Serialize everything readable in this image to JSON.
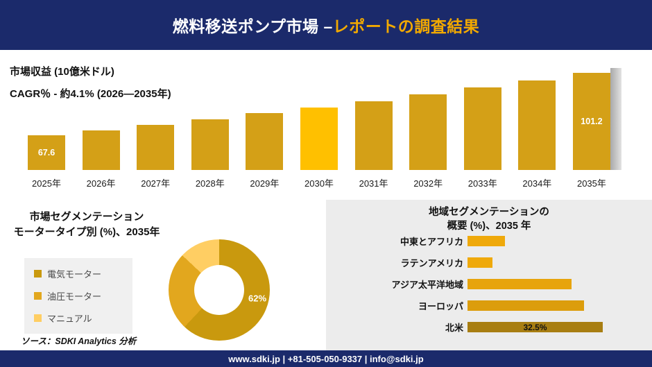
{
  "header": {
    "title_main": "燃料移送ポンプ市場 –",
    "title_accent": "レポートの調査結果"
  },
  "footer": {
    "text": "www.sdki.jp | +81-505-050-9337 | info@sdki.jp"
  },
  "source_note": "ソース：SDKI Analytics 分析",
  "colors": {
    "navy": "#1B2A6B",
    "accent_gold": "#F2A900",
    "panel_gray": "#ECECEC"
  },
  "chart_data": [
    {
      "id": "market-revenue",
      "type": "bar",
      "title": "市場収益 (10億米ドル)",
      "subtitle": "CAGR％ - 約4.1% (2026―2035年)",
      "categories": [
        "2025年",
        "2026年",
        "2027年",
        "2028年",
        "2029年",
        "2030年",
        "2031年",
        "2032年",
        "2033年",
        "2034年",
        "2035年"
      ],
      "values": [
        67.6,
        70.4,
        73.3,
        76.3,
        79.4,
        82.6,
        86.0,
        89.5,
        93.2,
        97.0,
        101.2
      ],
      "value_labels": {
        "0": "67.6",
        "10": "101.2"
      },
      "highlight_index": 5,
      "bar_color": "#D4A017",
      "highlight_color": "#FFC000",
      "ylim": [
        49,
        103
      ],
      "grid": false,
      "legend_position": "none"
    },
    {
      "id": "motor-type-segmentation",
      "type": "pie",
      "donut": true,
      "title_line1": "市場セグメンテーション",
      "title_line2": "モータータイプ別 (%)、2035年",
      "labels": [
        "電気モーター",
        "油圧モーター",
        "マニュアル"
      ],
      "values": [
        62,
        25,
        13
      ],
      "colors": [
        "#C9990E",
        "#E2A71E",
        "#FFCE63"
      ],
      "callout_label": "62%",
      "legend_position": "left"
    },
    {
      "id": "regional-segmentation",
      "type": "bar",
      "orientation": "horizontal",
      "title_line1": "地域セグメンテーションの",
      "title_line2": "概要 (%)、2035 年",
      "categories": [
        "中東とアフリカ",
        "ラテンアメリカ",
        "アジア太平洋地域",
        "ヨーロッパ",
        "北米"
      ],
      "values": [
        9,
        6,
        25,
        28,
        32.5
      ],
      "bar_colors": [
        "#EFA90B",
        "#EFA90B",
        "#E7A40C",
        "#DC9D0C",
        "#A87E12"
      ],
      "value_labels": {
        "4": "32.5%"
      },
      "xlim": [
        0,
        35
      ],
      "grid": false
    }
  ]
}
